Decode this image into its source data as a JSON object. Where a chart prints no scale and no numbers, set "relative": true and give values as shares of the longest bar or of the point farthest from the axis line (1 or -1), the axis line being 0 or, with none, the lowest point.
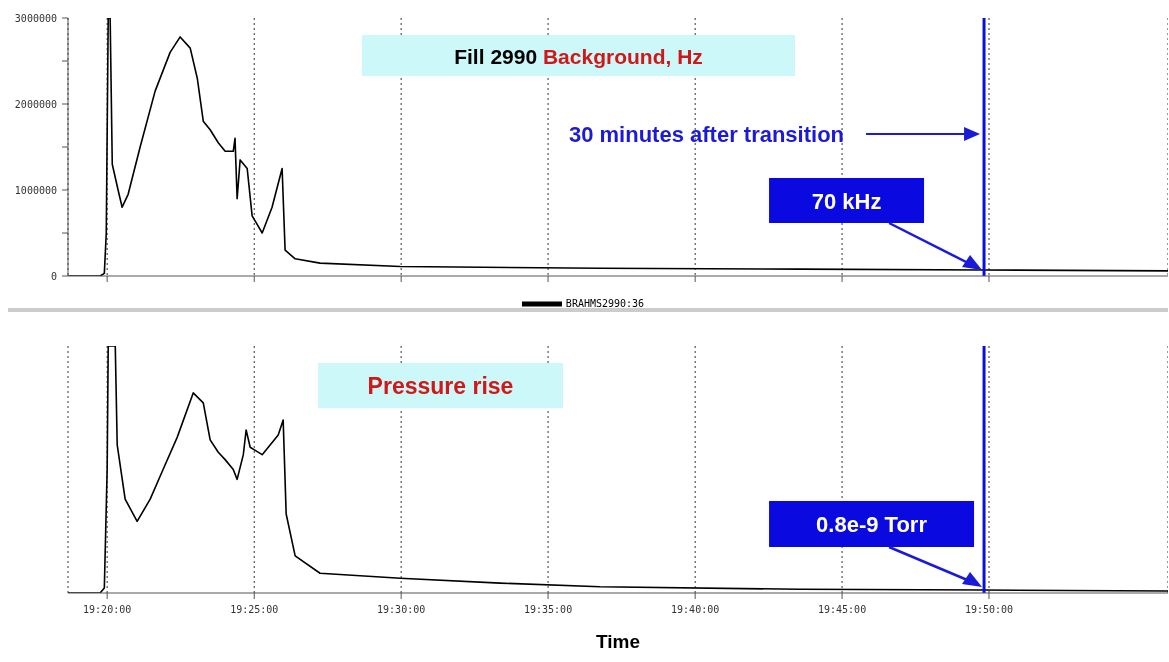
{
  "chart_data": [
    {
      "type": "line",
      "title": "Fill 2990 Background, Hz",
      "x": [
        19.3111,
        19.3293,
        19.3317,
        19.3328,
        19.3339,
        19.335,
        19.3362,
        19.3395,
        19.3418,
        19.3452,
        19.352,
        19.3605,
        19.369,
        19.3747,
        19.3804,
        19.3844,
        19.3878,
        19.3917,
        19.3963,
        19.4002,
        19.4048,
        19.4058,
        19.407,
        19.4087,
        19.4127,
        19.4155,
        19.4212,
        19.4268,
        19.4325,
        19.4342,
        19.4399,
        19.454,
        19.4995,
        19.6128,
        19.7262,
        19.8305,
        19.9348
      ],
      "series": [
        {
          "name": "BRAHMS2990:36",
          "color": "#000000",
          "values": [
            0,
            0,
            30000,
            500000,
            3000000,
            3000000,
            1300000,
            1000000,
            800000,
            950000,
            1500000,
            2150000,
            2600000,
            2780000,
            2650000,
            2300000,
            1800000,
            1700000,
            1550000,
            1450000,
            1450000,
            1600000,
            900000,
            1350000,
            1250000,
            700000,
            500000,
            800000,
            1250000,
            300000,
            200000,
            150000,
            110000,
            90000,
            80000,
            70000,
            60000
          ]
        }
      ],
      "xlim": [
        19.3111,
        19.9348
      ],
      "xticks": [
        {
          "value": 19.3333,
          "label": null
        },
        {
          "value": 19.4167,
          "label": null
        },
        {
          "value": 19.5,
          "label": null
        },
        {
          "value": 19.5833,
          "label": null
        },
        {
          "value": 19.6667,
          "label": null
        },
        {
          "value": 19.75,
          "label": null
        },
        {
          "value": 19.8333,
          "label": null
        }
      ],
      "ylim": [
        0,
        3000000
      ],
      "yticks": [
        0,
        {
          "value": 500000,
          "label": null
        },
        1000000,
        {
          "value": 1500000,
          "label": null
        },
        2000000,
        {
          "value": 2500000,
          "label": null
        },
        3000000
      ],
      "tick_labels": "y",
      "grid": "x",
      "legend": "bottom",
      "marker": "none",
      "line_style": "solid",
      "ref_lines": [
        {
          "axis": "x",
          "value": 19.8305,
          "label": null,
          "color": "#0a10d8"
        }
      ],
      "annotations": [
        "30 minutes after transition",
        "70 kHz"
      ]
    },
    {
      "type": "line",
      "title": "Pressure rise",
      "xlabel": "Time",
      "relative": true,
      "x": [
        19.3111,
        19.3293,
        19.3317,
        19.3333,
        19.3339,
        19.335,
        19.3379,
        19.339,
        19.3435,
        19.3503,
        19.3577,
        19.365,
        19.373,
        19.3821,
        19.3878,
        19.3917,
        19.3963,
        19.4002,
        19.4048,
        19.407,
        19.4105,
        19.4121,
        19.4144,
        19.4212,
        19.4303,
        19.4331,
        19.4348,
        19.4399,
        19.454,
        19.4995,
        19.5561,
        19.6128,
        19.7262,
        19.8305,
        19.9348
      ],
      "series": [
        {
          "color": "#000000",
          "values": [
            0,
            0,
            0.02,
            0.5,
            1,
            1,
            1,
            0.6,
            0.38,
            0.29,
            0.38,
            0.5,
            0.63,
            0.81,
            0.77,
            0.62,
            0.57,
            0.54,
            0.5,
            0.46,
            0.56,
            0.66,
            0.59,
            0.56,
            0.64,
            0.7,
            0.32,
            0.15,
            0.08,
            0.06,
            0.04,
            0.025,
            0.015,
            0.012,
            0.008
          ]
        }
      ],
      "xlim": [
        19.3111,
        19.9348
      ],
      "xticks": [
        {
          "value": 19.3333,
          "label": "19:20:00"
        },
        {
          "value": 19.4167,
          "label": "19:25:00"
        },
        {
          "value": 19.5,
          "label": "19:30:00"
        },
        {
          "value": 19.5833,
          "label": "19:35:00"
        },
        {
          "value": 19.6667,
          "label": "19:40:00"
        },
        {
          "value": 19.75,
          "label": "19:45:00"
        },
        {
          "value": 19.8333,
          "label": "19:50:00"
        }
      ],
      "tick_labels": "x",
      "grid": "x",
      "marker": "none",
      "line_style": "solid",
      "ref_lines": [
        {
          "axis": "x",
          "value": 19.8305,
          "label": null,
          "color": "#0a10d8"
        }
      ],
      "annotations": [
        "0.8e-9 Torr"
      ]
    }
  ]
}
